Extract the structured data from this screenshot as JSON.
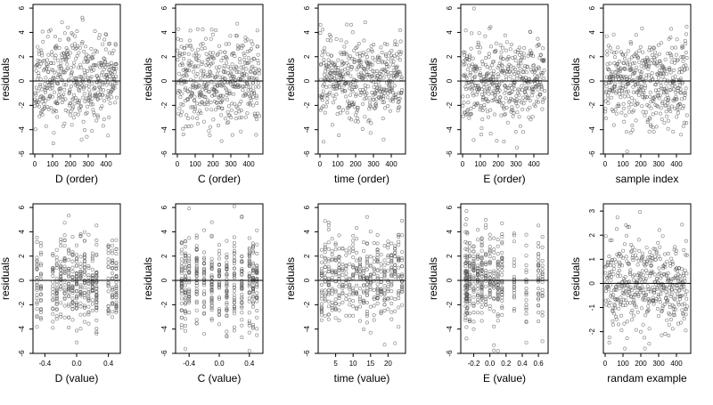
{
  "colors": {
    "point": "#555555",
    "axis": "#000000",
    "refline": "#000000"
  },
  "chart_data": [
    {
      "type": "scatter",
      "xlabel": "D (order)",
      "ylabel": "residuals",
      "xlim": [
        -10,
        480
      ],
      "ylim": [
        -6,
        6.3
      ],
      "xticks": [
        0,
        100,
        200,
        300,
        400
      ],
      "xticklabels": [
        "0",
        "100",
        "200",
        "300",
        "400"
      ],
      "yticks": [
        -6,
        -4,
        -2,
        0,
        2,
        4,
        6
      ],
      "yticklabels": [
        "-6",
        "-4",
        "-2",
        "0",
        "2",
        "4",
        "6"
      ],
      "hline": 0,
      "gen": {
        "mode": "order",
        "n": 460,
        "sd": 1.8,
        "seed": 11
      }
    },
    {
      "type": "scatter",
      "xlabel": "C (order)",
      "ylabel": "residuals",
      "xlim": [
        -10,
        480
      ],
      "ylim": [
        -6,
        6.3
      ],
      "xticks": [
        0,
        100,
        200,
        300,
        400
      ],
      "xticklabels": [
        "0",
        "100",
        "200",
        "300",
        "400"
      ],
      "yticks": [
        -6,
        -4,
        -2,
        0,
        2,
        4,
        6
      ],
      "yticklabels": [
        "-6",
        "-4",
        "-2",
        "0",
        "2",
        "4",
        "6"
      ],
      "hline": 0,
      "gen": {
        "mode": "order",
        "n": 460,
        "sd": 1.8,
        "seed": 12
      }
    },
    {
      "type": "scatter",
      "xlabel": "time (order)",
      "ylabel": "residuals",
      "xlim": [
        -10,
        480
      ],
      "ylim": [
        -6,
        6.3
      ],
      "xticks": [
        0,
        100,
        200,
        300,
        400
      ],
      "xticklabels": [
        "0",
        "100",
        "200",
        "300",
        "400"
      ],
      "yticks": [
        -6,
        -4,
        -2,
        0,
        2,
        4,
        6
      ],
      "yticklabels": [
        "-6",
        "-4",
        "-2",
        "0",
        "2",
        "4",
        "6"
      ],
      "hline": 0,
      "gen": {
        "mode": "order",
        "n": 460,
        "sd": 1.8,
        "seed": 13
      }
    },
    {
      "type": "scatter",
      "xlabel": "E (order)",
      "ylabel": "residuals",
      "xlim": [
        -10,
        480
      ],
      "ylim": [
        -6,
        6.3
      ],
      "xticks": [
        0,
        100,
        200,
        300,
        400
      ],
      "xticklabels": [
        "0",
        "100",
        "200",
        "300",
        "400"
      ],
      "yticks": [
        -6,
        -4,
        -2,
        0,
        2,
        4,
        6
      ],
      "yticklabels": [
        "-6",
        "-4",
        "-2",
        "0",
        "2",
        "4",
        "6"
      ],
      "hline": 0,
      "gen": {
        "mode": "order",
        "n": 460,
        "sd": 1.8,
        "seed": 14
      }
    },
    {
      "type": "scatter",
      "xlabel": "sample index",
      "ylabel": "residuals",
      "xlim": [
        -10,
        480
      ],
      "ylim": [
        -6,
        6.3
      ],
      "xticks": [
        0,
        100,
        200,
        300,
        400
      ],
      "xticklabels": [
        "0",
        "100",
        "200",
        "300",
        "400"
      ],
      "yticks": [
        -6,
        -4,
        -2,
        0,
        2,
        4,
        6
      ],
      "yticklabels": [
        "-6",
        "-4",
        "-2",
        "0",
        "2",
        "4",
        "6"
      ],
      "hline": 0,
      "gen": {
        "mode": "order",
        "n": 460,
        "sd": 1.8,
        "seed": 15
      }
    },
    {
      "type": "scatter",
      "xlabel": "D (value)",
      "ylabel": "residuals",
      "xlim": [
        -0.55,
        0.55
      ],
      "ylim": [
        -6,
        6.3
      ],
      "xticks": [
        -0.4,
        0,
        0.4
      ],
      "xticklabels": [
        "-0.4",
        "0.0",
        "0.4"
      ],
      "yticks": [
        -6,
        -4,
        -2,
        0,
        2,
        4,
        6
      ],
      "yticklabels": [
        "-6",
        "-4",
        "-2",
        "0",
        "2",
        "4",
        "6"
      ],
      "hline": 0,
      "gen": {
        "mode": "discrete",
        "levels": [
          -0.5,
          -0.45,
          -0.3,
          -0.25,
          -0.2,
          -0.15,
          -0.1,
          -0.05,
          0,
          0.05,
          0.1,
          0.15,
          0.2,
          0.25,
          0.4,
          0.45,
          0.5
        ],
        "n": 460,
        "sd": 1.8,
        "seed": 21
      }
    },
    {
      "type": "scatter",
      "xlabel": "C (value)",
      "ylabel": "residuals",
      "xlim": [
        -0.58,
        0.58
      ],
      "ylim": [
        -6,
        6.3
      ],
      "xticks": [
        -0.4,
        0,
        0.4
      ],
      "xticklabels": [
        "-0.4",
        "0.0",
        "0.4"
      ],
      "yticks": [
        -6,
        -4,
        -2,
        0,
        2,
        4,
        6
      ],
      "yticklabels": [
        "-6",
        "-4",
        "-2",
        "0",
        "2",
        "4",
        "6"
      ],
      "hline": 0,
      "gen": {
        "mode": "discrete",
        "levels": [
          -0.5,
          -0.45,
          -0.4,
          -0.3,
          -0.2,
          -0.1,
          0,
          0.1,
          0.2,
          0.3,
          0.4,
          0.45,
          0.5
        ],
        "n": 460,
        "sd": 1.8,
        "seed": 22
      }
    },
    {
      "type": "scatter",
      "xlabel": "time (value)",
      "ylabel": "residuals",
      "xlim": [
        0,
        25
      ],
      "ylim": [
        -6,
        6.3
      ],
      "xticks": [
        5,
        10,
        15,
        20
      ],
      "xticklabels": [
        "5",
        "10",
        "15",
        "20"
      ],
      "yticks": [
        -6,
        -4,
        -2,
        0,
        2,
        4,
        6
      ],
      "yticklabels": [
        "-6",
        "-4",
        "-2",
        "0",
        "2",
        "4",
        "6"
      ],
      "hline": 0,
      "gen": {
        "mode": "discrete",
        "levels": [
          1,
          2,
          3,
          4,
          5,
          6,
          7,
          8,
          9,
          10,
          11,
          12,
          13,
          14,
          15,
          16,
          17,
          18,
          19,
          20,
          21,
          22,
          23,
          24
        ],
        "n": 460,
        "sd": 1.8,
        "seed": 23
      }
    },
    {
      "type": "scatter",
      "xlabel": "E (value)",
      "ylabel": "residuals",
      "xlim": [
        -0.36,
        0.72
      ],
      "ylim": [
        -6,
        6.3
      ],
      "xticks": [
        -0.2,
        0,
        0.2,
        0.4,
        0.6
      ],
      "xticklabels": [
        "-0.2",
        "0.0",
        "0.2",
        "0.4",
        "0.6"
      ],
      "yticks": [
        -6,
        -4,
        -2,
        0,
        2,
        4,
        6
      ],
      "yticklabels": [
        "-6",
        "-4",
        "-2",
        "0",
        "2",
        "4",
        "6"
      ],
      "hline": 0,
      "gen": {
        "mode": "discrete",
        "levels": [
          -0.3,
          -0.29,
          -0.28,
          -0.25,
          -0.2,
          -0.15,
          -0.1,
          -0.05,
          0,
          0.05,
          0.1,
          0.15,
          0.3,
          0.45,
          0.6,
          0.65
        ],
        "n": 460,
        "sd": 1.8,
        "seed": 24
      }
    },
    {
      "type": "scatter",
      "xlabel": "randam example",
      "ylabel": "residuals",
      "xlim": [
        -10,
        480
      ],
      "ylim": [
        -2.9,
        3.3
      ],
      "xticks": [
        0,
        100,
        200,
        300,
        400
      ],
      "xticklabels": [
        "0",
        "100",
        "200",
        "300",
        "400"
      ],
      "yticks": [
        -2,
        -1,
        0,
        1,
        2,
        3
      ],
      "yticklabels": [
        "-2",
        "-1",
        "0",
        "1",
        "2",
        "3"
      ],
      "hline": 0,
      "gen": {
        "mode": "order",
        "n": 460,
        "sd": 0.95,
        "seed": 31
      }
    }
  ]
}
